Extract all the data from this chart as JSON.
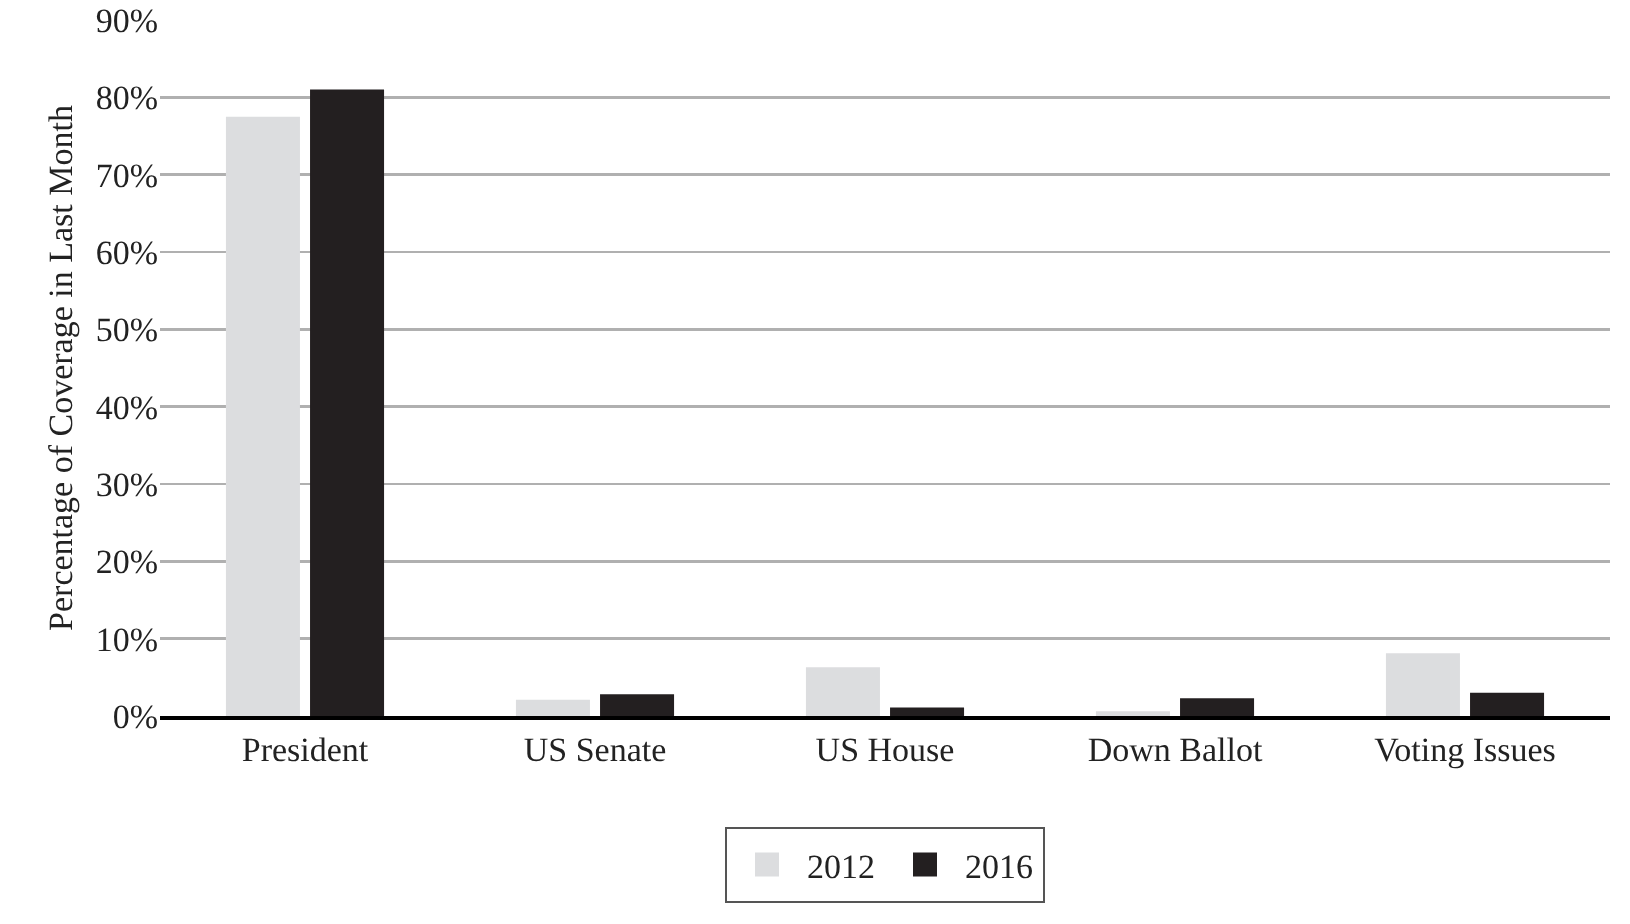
{
  "chart_data": {
    "type": "bar",
    "ylabel": "Percentage of Coverage in Last Month",
    "categories": [
      "President",
      "US Senate",
      "US House",
      "Down Ballot",
      "Voting Issues"
    ],
    "series": [
      {
        "name": "2012",
        "color": "#dcdddf",
        "values": [
          77.5,
          2.1,
          6.3,
          0.6,
          8.1
        ]
      },
      {
        "name": "2016",
        "color": "#231f20",
        "values": [
          81,
          2.8,
          1.1,
          2.3,
          3.0
        ]
      }
    ],
    "ylim": [
      0,
      90
    ],
    "yticks": [
      {
        "value": 0,
        "label": "0%"
      },
      {
        "value": 10,
        "label": "10%"
      },
      {
        "value": 20,
        "label": "20%"
      },
      {
        "value": 30,
        "label": "30%"
      },
      {
        "value": 40,
        "label": "40%"
      },
      {
        "value": 50,
        "label": "50%"
      },
      {
        "value": 60,
        "label": "60%"
      },
      {
        "value": 70,
        "label": "70%"
      },
      {
        "value": 80,
        "label": "80%"
      },
      {
        "value": 90,
        "label": "90%"
      }
    ],
    "grid": "y",
    "legend": "bottom"
  }
}
